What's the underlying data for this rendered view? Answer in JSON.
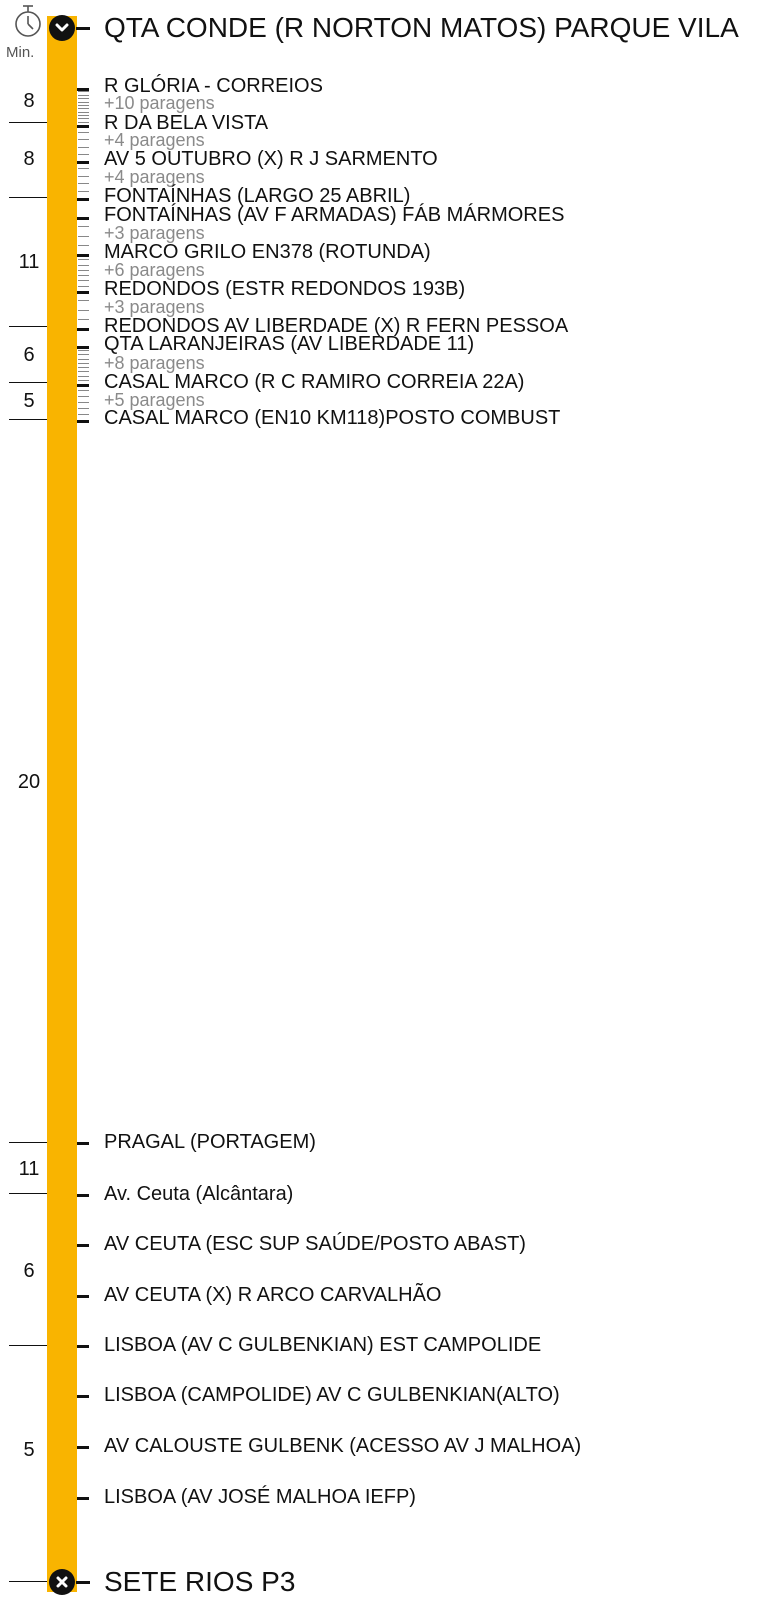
{
  "header": {
    "minutes_label": "Min.",
    "origin": "QTA CONDE (R NORTON MATOS) PARQUE VILA",
    "destination": "SETE RIOS P3"
  },
  "colors": {
    "route": "#F9B400",
    "text": "#111111",
    "muted": "#8a8a8a"
  },
  "icons": {
    "clock": "stopwatch-icon",
    "origin": "chevron-down-icon",
    "destination": "close-icon"
  },
  "stops": [
    {
      "name": "R GLÓRIA - CORREIOS"
    },
    {
      "name": "R DA BELA VISTA"
    },
    {
      "name": "AV 5 OUTUBRO (X) R J SARMENTO"
    },
    {
      "name": "FONTAÍNHAS (LARGO 25 ABRIL)"
    },
    {
      "name": "FONTAÍNHAS (AV F ARMADAS) FÁB MÁRMORES"
    },
    {
      "name": "MARCO GRILO EN378 (ROTUNDA)"
    },
    {
      "name": "REDONDOS (ESTR REDONDOS 193B)"
    },
    {
      "name": "REDONDOS AV LIBERDADE (X) R FERN PESSOA"
    },
    {
      "name": "QTA LARANJEIRAS (AV LIBERDADE 11)"
    },
    {
      "name": "CASAL MARCO (R C RAMIRO CORREIA 22A)"
    },
    {
      "name": "CASAL MARCO (EN10 KM118)POSTO COMBUST"
    },
    {
      "name": "PRAGAL (PORTAGEM)"
    },
    {
      "name": "Av. Ceuta (Alcântara)"
    },
    {
      "name": "AV CEUTA (ESC SUP SAÚDE/POSTO ABAST)"
    },
    {
      "name": "AV CEUTA (X) R ARCO CARVALHÃO"
    },
    {
      "name": "LISBOA (AV C GULBENKIAN) EST CAMPOLIDE"
    },
    {
      "name": "LISBOA (CAMPOLIDE) AV C GULBENKIAN(ALTO)"
    },
    {
      "name": "AV CALOUSTE GULBENK (ACESSO AV J MALHOA)"
    },
    {
      "name": "LISBOA (AV JOSÉ MALHOA IEFP)"
    }
  ],
  "hidden_groups": [
    {
      "label": "+10 paragens",
      "count": 10
    },
    {
      "label": "+4 paragens",
      "count": 4
    },
    {
      "label": "+4 paragens",
      "count": 4
    },
    {
      "label": "+3 paragens",
      "count": 3
    },
    {
      "label": "+6 paragens",
      "count": 6
    },
    {
      "label": "+3 paragens",
      "count": 3
    },
    {
      "label": "+8 paragens",
      "count": 8
    },
    {
      "label": "+5 paragens",
      "count": 5
    }
  ],
  "segments": [
    {
      "minutes": "8"
    },
    {
      "minutes": "8"
    },
    {
      "minutes": "11"
    },
    {
      "minutes": "6"
    },
    {
      "minutes": "5"
    },
    {
      "minutes": "20"
    },
    {
      "minutes": "11"
    },
    {
      "minutes": "6"
    },
    {
      "minutes": "5"
    }
  ]
}
